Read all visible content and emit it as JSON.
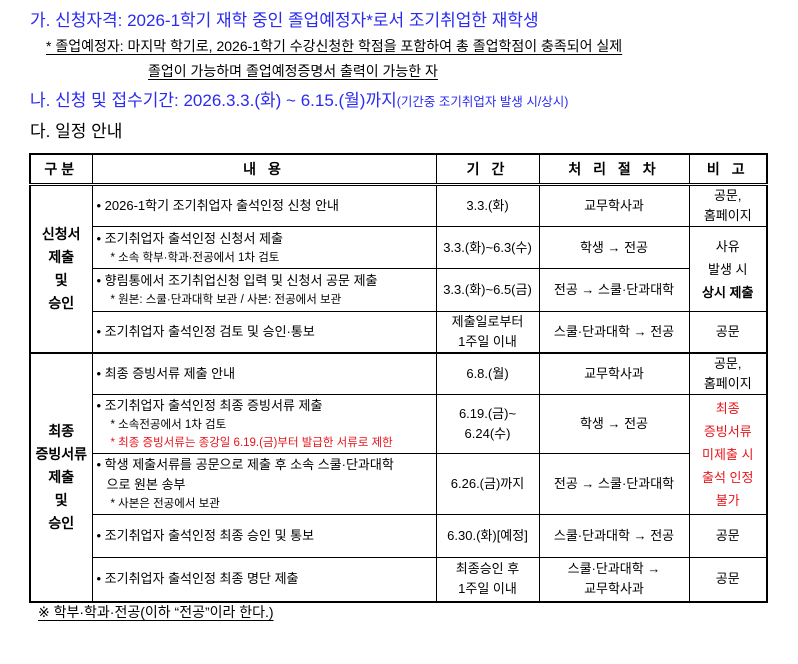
{
  "heading_a": "가. 신청자격: 2026-1학기 재학 중인 졸업예정자*로서 조기취업한 재학생",
  "note_a": [
    "* 졸업예정자: 마지막 학기로, 2026-1학기 수강신청한 학점을 포함하여 총 졸업학점이 충족되어 실제",
    "졸업이 가능하며 졸업예정증명서 출력이 가능한 자"
  ],
  "heading_b": "나. 신청 및 접수기간: 2026.3.3.(화) ~ 6.15.(월)까지",
  "heading_b_extra": "(기간중 조기취업자 발생 시/상시)",
  "heading_c": "다. 일정 안내",
  "colors": {
    "heading": "#2b2bf0",
    "warning": "#e8141b"
  },
  "table": {
    "headers": [
      "구분",
      "내 용",
      "기 간",
      "처 리 절 차",
      "비 고"
    ],
    "groups": [
      {
        "label": [
          "신청서",
          "제출",
          "및",
          "승인"
        ],
        "rows": [
          {
            "content": [
              {
                "t": "• 2026-1학기 조기취업자 출석인정 신청 안내"
              }
            ],
            "period": [
              "3.3.(화)"
            ],
            "process": [
              "교무학사과"
            ],
            "note": {
              "lines": [
                "공문,",
                "홈페이지"
              ],
              "span": 1
            }
          },
          {
            "content": [
              {
                "t": "• 조기취업자 출석인정 신청서 제출"
              },
              {
                "t": "* 소속 학부·학과·전공에서 1차 검토",
                "sub": true
              }
            ],
            "period": [
              "3.3.(화)~6.3(수)"
            ],
            "process": [
              "학생 → 전공"
            ],
            "note": {
              "lines": [
                "사유",
                "발생 시",
                "상시 제출"
              ],
              "bold_last": true,
              "span": 2
            }
          },
          {
            "content": [
              {
                "t": "• 향림통에서 조기취업신청 입력 및 신청서 공문 제출"
              },
              {
                "t": "* 원본: 스쿨·단과대학 보관 / 사본: 전공에서 보관",
                "sub": true
              }
            ],
            "period": [
              "3.3.(화)~6.5(금)"
            ],
            "process": [
              "전공 → 스쿨·단과대학"
            ]
          },
          {
            "content": [
              {
                "t": "• 조기취업자 출석인정 검토 및 승인·통보"
              }
            ],
            "period": [
              "제출일로부터",
              "1주일 이내"
            ],
            "process": [
              "스쿨·단과대학 → 전공"
            ],
            "note": {
              "lines": [
                "공문"
              ],
              "span": 1
            }
          }
        ]
      },
      {
        "label": [
          "최종",
          "증빙서류",
          "제출",
          "및",
          "승인"
        ],
        "rows": [
          {
            "content": [
              {
                "t": "• 최종 증빙서류 제출 안내"
              }
            ],
            "period": [
              "6.8.(월)"
            ],
            "process": [
              "교무학사과"
            ],
            "note": {
              "lines": [
                "공문,",
                "홈페이지"
              ],
              "span": 1
            }
          },
          {
            "content": [
              {
                "t": "• 조기취업자 출석인정 최종 증빙서류 제출"
              },
              {
                "t": "* 소속전공에서 1차 검토",
                "sub": true
              },
              {
                "t": "* 최종 증빙서류는 종강일 6.19.(금)부터 발급한 서류로 제한",
                "sub": true,
                "red": true
              }
            ],
            "period": [
              "6.19.(금)~",
              "6.24(수)"
            ],
            "process": [
              "학생 → 전공"
            ],
            "note": {
              "lines": [
                "최종",
                "증빙서류",
                "미제출 시",
                "출석 인정",
                "불가"
              ],
              "red": true,
              "span": 2
            }
          },
          {
            "content": [
              {
                "t": "• 학생 제출서류를 공문으로 제출 후 소속 스쿨·단과대학"
              },
              {
                "t": "  으로 원본 송부"
              },
              {
                "t": "* 사본은 전공에서 보관",
                "sub": true
              }
            ],
            "period": [
              "6.26.(금)까지"
            ],
            "process": [
              "전공 → 스쿨·단과대학"
            ]
          },
          {
            "content": [
              {
                "t": "• 조기취업자 출석인정 최종 승인 및 통보"
              }
            ],
            "period": [
              "6.30.(화)[예정]"
            ],
            "process": [
              "스쿨·단과대학 → 전공"
            ],
            "note": {
              "lines": [
                "공문"
              ],
              "span": 1
            }
          },
          {
            "content": [
              {
                "t": "• 조기취업자 출석인정 최종 명단 제출"
              }
            ],
            "period": [
              "최종승인 후",
              "1주일 이내"
            ],
            "process": [
              "스쿨·단과대학 →",
              "교무학사과"
            ],
            "note": {
              "lines": [
                "공문"
              ],
              "span": 1
            }
          }
        ]
      }
    ]
  },
  "footer": "※ 학부·학과·전공(이하 “전공”이라 한다.)"
}
